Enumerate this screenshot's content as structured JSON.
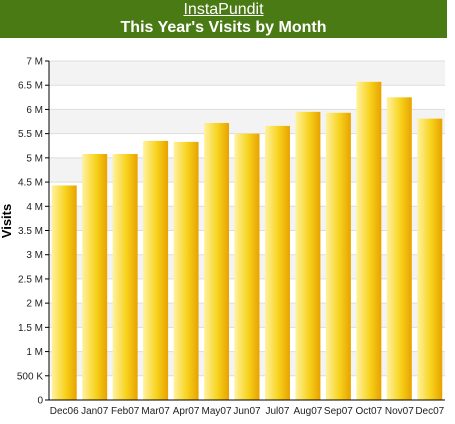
{
  "header": {
    "site_link": "InstaPundit",
    "title": "This Year's Visits by Month",
    "background": "#4a7a14"
  },
  "chart_data": {
    "type": "bar",
    "title": "This Year's Visits by Month",
    "xlabel": "",
    "ylabel": "Visits",
    "ylim": [
      0,
      7000000
    ],
    "yticks": [
      {
        "value": 0,
        "label": "0"
      },
      {
        "value": 500000,
        "label": "500 K"
      },
      {
        "value": 1000000,
        "label": "1 M"
      },
      {
        "value": 1500000,
        "label": "1.5 M"
      },
      {
        "value": 2000000,
        "label": "2 M"
      },
      {
        "value": 2500000,
        "label": "2.5 M"
      },
      {
        "value": 3000000,
        "label": "3 M"
      },
      {
        "value": 3500000,
        "label": "3.5 M"
      },
      {
        "value": 4000000,
        "label": "4 M"
      },
      {
        "value": 4500000,
        "label": "4.5 M"
      },
      {
        "value": 5000000,
        "label": "5 M"
      },
      {
        "value": 5500000,
        "label": "5.5 M"
      },
      {
        "value": 6000000,
        "label": "6 M"
      },
      {
        "value": 6500000,
        "label": "6.5 M"
      },
      {
        "value": 7000000,
        "label": "7 M"
      }
    ],
    "categories": [
      "Dec06",
      "Jan07",
      "Feb07",
      "Mar07",
      "Apr07",
      "May07",
      "Jun07",
      "Jul07",
      "Aug07",
      "Sep07",
      "Oct07",
      "Nov07",
      "Dec07"
    ],
    "values": [
      4430000,
      5080000,
      5080000,
      5350000,
      5330000,
      5720000,
      5500000,
      5660000,
      5950000,
      5930000,
      6570000,
      6250000,
      5810000
    ],
    "grid": true,
    "bar_color_light": "#fff2a0",
    "bar_color_mid": "#f7d21c",
    "bar_color_dark": "#e8a200",
    "band_color": "#f3f3f3",
    "grid_color": "#dddddd"
  }
}
